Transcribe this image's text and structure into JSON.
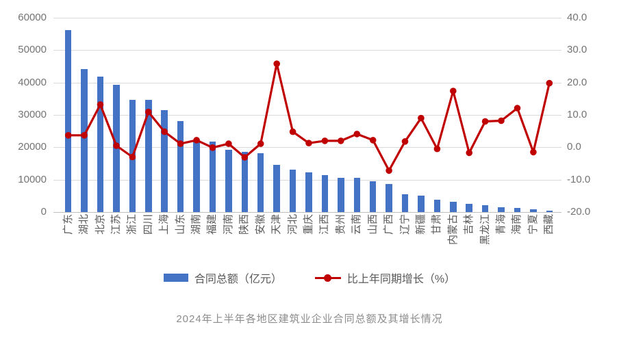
{
  "title": "2024年上半年各地区建筑业企业合同总额及其增长情况",
  "legend": {
    "bar_label": "合同总额（亿元）",
    "line_label": "比上年同期增长（%）"
  },
  "colors": {
    "bar": "#4472C4",
    "line": "#C00000",
    "grid": "#D9D9D9",
    "zero_line": "#BFBFBF",
    "axis_text": "#737373",
    "category_text": "#595959",
    "legend_text": "#595959",
    "title_text": "#8C8C8C"
  },
  "chart_data": {
    "type": "combo-bar-line",
    "title": "2024年上半年各地区建筑业企业合同总额及其增长情况",
    "categories": [
      "广东",
      "湖北",
      "北京",
      "江苏",
      "浙江",
      "四川",
      "上海",
      "山东",
      "湖南",
      "福建",
      "河南",
      "陕西",
      "安徽",
      "天津",
      "河北",
      "重庆",
      "江西",
      "贵州",
      "云南",
      "山西",
      "广西",
      "辽宁",
      "新疆",
      "甘肃",
      "内蒙古",
      "吉林",
      "黑龙江",
      "青海",
      "海南",
      "宁夏",
      "西藏"
    ],
    "series": [
      {
        "name": "合同总额（亿元）",
        "type": "bar",
        "axis": "left",
        "values": [
          56100,
          44100,
          41800,
          39300,
          34700,
          34700,
          31500,
          28100,
          22100,
          21800,
          19300,
          18600,
          18200,
          14600,
          13000,
          12200,
          11400,
          10500,
          10500,
          9600,
          8700,
          5500,
          5000,
          3900,
          3100,
          2600,
          2200,
          1500,
          1200,
          800,
          500
        ]
      },
      {
        "name": "比上年同期增长（%）",
        "type": "line",
        "axis": "right",
        "values": [
          3.7,
          3.7,
          13.2,
          0.5,
          -3.0,
          10.9,
          4.8,
          1.1,
          2.2,
          -0.1,
          1.1,
          -3.1,
          1.1,
          25.8,
          4.8,
          1.3,
          2.0,
          2.0,
          4.1,
          2.2,
          -7.2,
          1.8,
          9.0,
          -0.5,
          17.4,
          -1.7,
          8.0,
          8.2,
          12.1,
          -1.5,
          19.8
        ]
      }
    ],
    "left_axis": {
      "min": 0,
      "max": 60000,
      "step": 10000,
      "ticks": [
        "0",
        "10000",
        "20000",
        "30000",
        "40000",
        "50000",
        "60000"
      ]
    },
    "right_axis": {
      "min": -20,
      "max": 40,
      "step": 10,
      "ticks": [
        "-20.0",
        "-10.0",
        "0.0",
        "10.0",
        "20.0",
        "30.0",
        "40.0"
      ]
    },
    "grid": true,
    "legend_position": "bottom",
    "xlabel": "",
    "ylabel_left": "合同总额（亿元）",
    "ylabel_right": "比上年同期增长（%）"
  }
}
